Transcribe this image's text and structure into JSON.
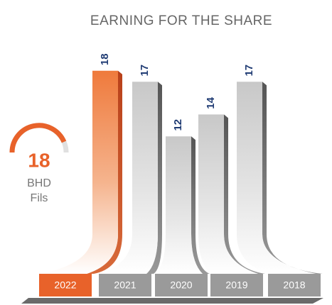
{
  "chart_data": {
    "type": "bar",
    "title": "EARNING FOR THE SHARE",
    "categories": [
      "2022",
      "2021",
      "2020",
      "2019",
      "2018"
    ],
    "values": [
      18,
      17,
      12,
      14,
      17
    ],
    "colors": [
      "#e8622a",
      "#b9b9b9",
      "#b9b9b9",
      "#b9b9b9",
      "#b9b9b9"
    ],
    "ylim": [
      0,
      20
    ],
    "highlight_value": 18,
    "highlight_unit": "BHD",
    "highlight_subunit": "Fils"
  }
}
